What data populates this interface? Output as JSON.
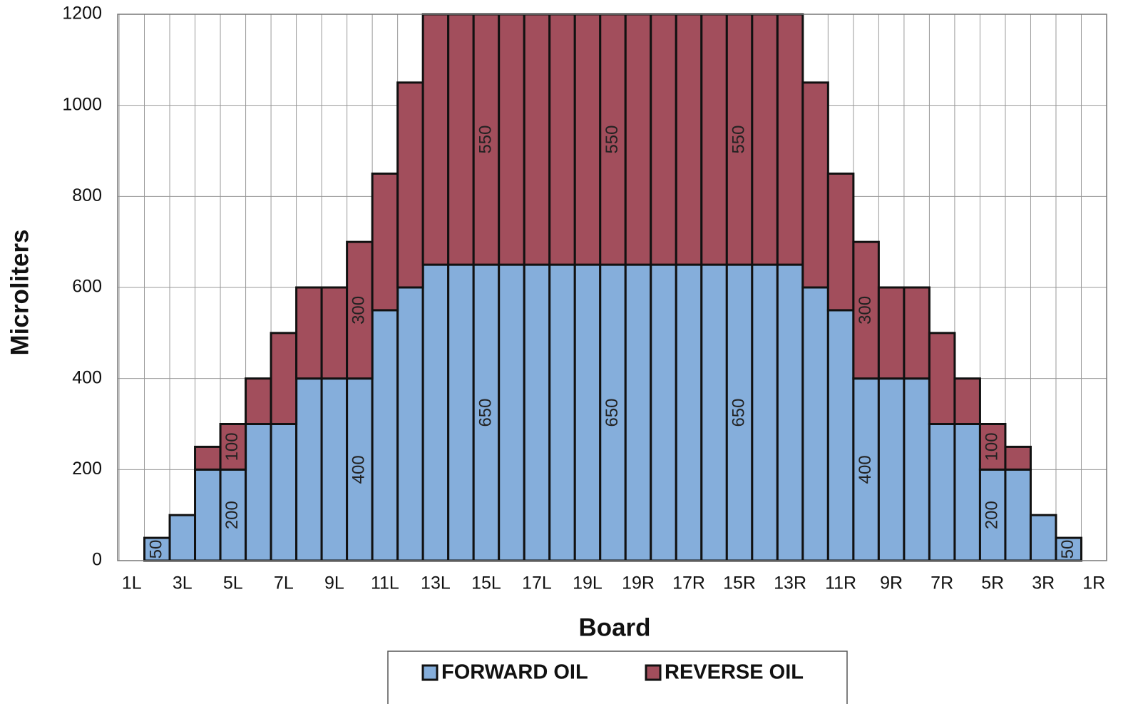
{
  "chart_data": {
    "type": "stacked_bar",
    "x_label": "Board",
    "y_label": "Microliters",
    "categories": [
      "1L",
      null,
      "3L",
      null,
      "5L",
      null,
      "7L",
      null,
      "9L",
      null,
      "11L",
      null,
      "13L",
      null,
      "15L",
      null,
      "17L",
      null,
      "19L",
      null,
      "19R",
      null,
      "17R",
      null,
      "15R",
      null,
      "13R",
      null,
      "11R",
      null,
      "9R",
      null,
      "7R",
      null,
      "5R",
      null,
      "3R",
      null,
      "1R"
    ],
    "series": [
      {
        "name": "FORWARD OIL",
        "color": "#85aedb",
        "values": [
          null,
          50,
          100,
          200,
          200,
          300,
          300,
          400,
          400,
          400,
          550,
          600,
          650,
          650,
          650,
          650,
          650,
          650,
          650,
          650,
          650,
          650,
          650,
          650,
          650,
          650,
          650,
          600,
          550,
          400,
          400,
          400,
          300,
          300,
          200,
          200,
          100,
          50,
          null
        ],
        "value_labels": [
          null,
          "50",
          null,
          null,
          "200",
          null,
          null,
          null,
          null,
          "400",
          null,
          null,
          null,
          null,
          "650",
          null,
          null,
          null,
          null,
          "650",
          null,
          null,
          null,
          null,
          "650",
          null,
          null,
          null,
          null,
          "400",
          null,
          null,
          null,
          null,
          "200",
          null,
          null,
          "50",
          null
        ]
      },
      {
        "name": "REVERSE OIL",
        "color": "#a24e5c",
        "values": [
          null,
          null,
          null,
          50,
          100,
          100,
          200,
          200,
          200,
          300,
          300,
          450,
          550,
          550,
          550,
          550,
          550,
          550,
          550,
          550,
          550,
          550,
          550,
          550,
          550,
          550,
          550,
          450,
          300,
          300,
          200,
          200,
          200,
          100,
          100,
          50,
          null,
          null,
          null
        ],
        "value_labels": [
          null,
          null,
          null,
          null,
          "100",
          null,
          null,
          null,
          null,
          "300",
          null,
          null,
          null,
          null,
          "550",
          null,
          null,
          null,
          null,
          "550",
          null,
          null,
          null,
          null,
          "550",
          null,
          null,
          null,
          null,
          "300",
          null,
          null,
          null,
          null,
          "100",
          null,
          null,
          null,
          null
        ]
      }
    ],
    "ylim": [
      0,
      1200
    ],
    "yticks": [
      0,
      200,
      400,
      600,
      800,
      1000,
      1200
    ],
    "grid": true,
    "legend": "bottom"
  }
}
